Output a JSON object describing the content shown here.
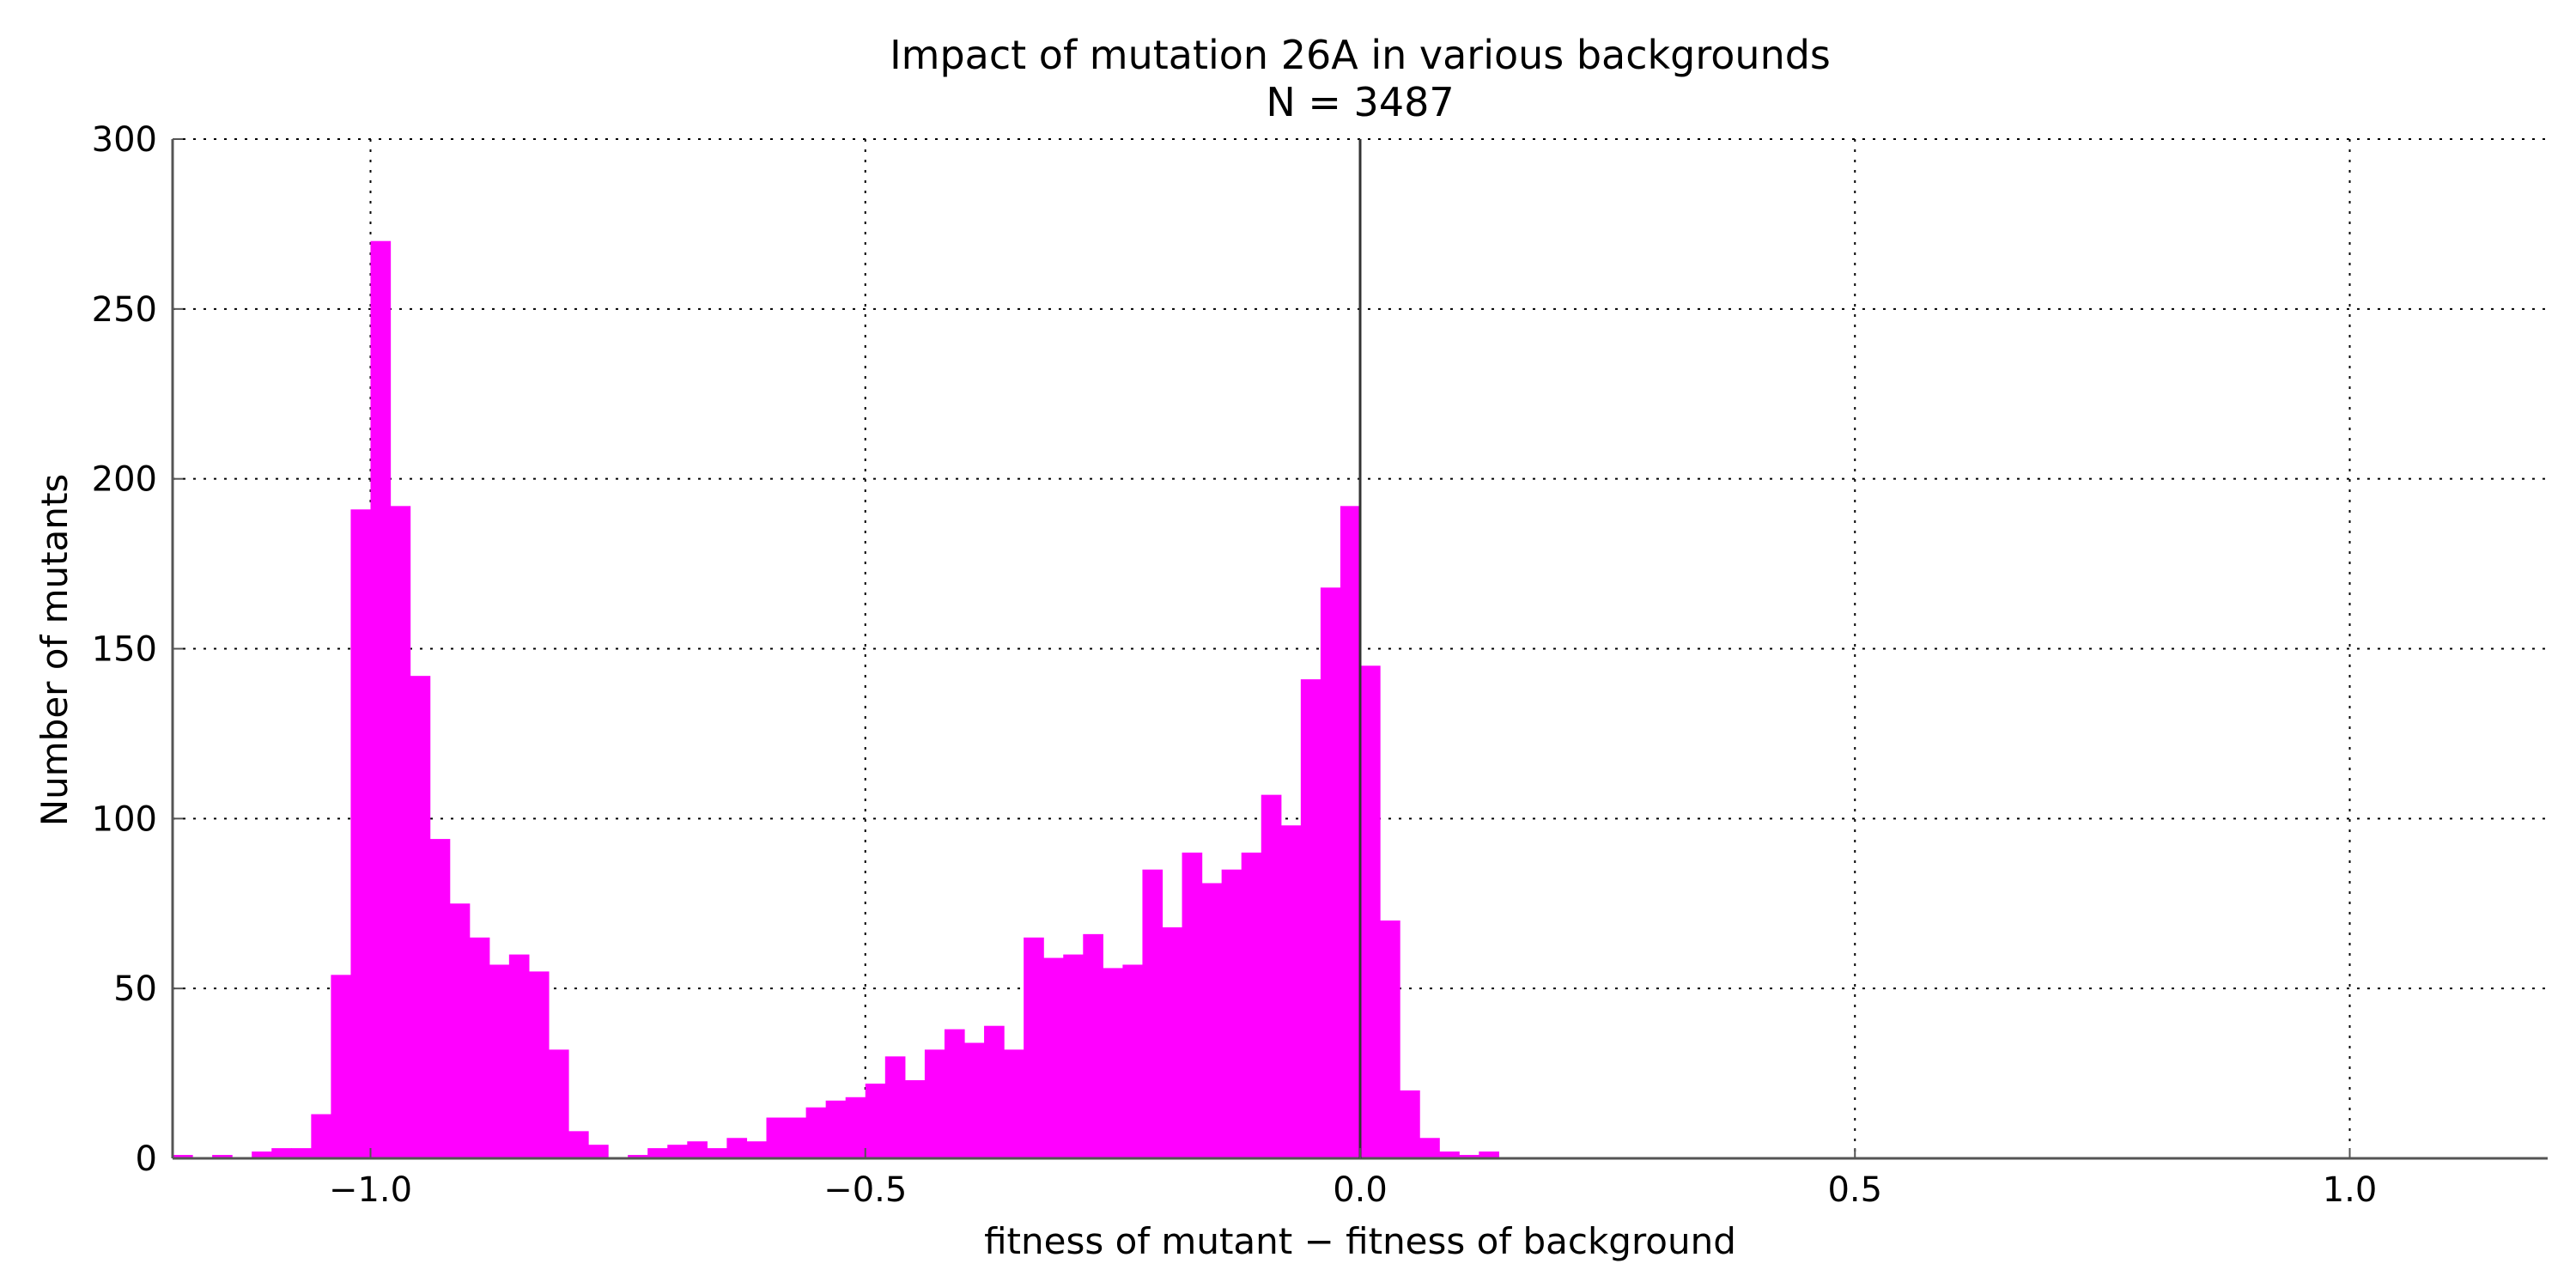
{
  "chart_data": {
    "type": "bar",
    "title": "Impact of mutation 26A in various backgrounds",
    "subtitle": "N = 3487",
    "xlabel": "fitness of mutant  −  fitness of background",
    "ylabel": "Number of mutants",
    "xlim": [
      -1.2,
      1.2
    ],
    "ylim": [
      0,
      300
    ],
    "x_ticks": [
      -1.0,
      -0.5,
      0.0,
      0.5,
      1.0
    ],
    "x_tick_labels": [
      "−1.0",
      "−0.5",
      "0.0",
      "0.5",
      "1.0"
    ],
    "y_ticks": [
      0,
      50,
      100,
      150,
      200,
      250,
      300
    ],
    "y_tick_labels": [
      "0",
      "50",
      "100",
      "150",
      "200",
      "250",
      "300"
    ],
    "grid": true,
    "bar_color": "#ff00ff",
    "reference_line_x": 0.0,
    "bin_width": 0.02,
    "bin_starts": [
      -1.2,
      -1.18,
      -1.16,
      -1.14,
      -1.12,
      -1.1,
      -1.08,
      -1.06,
      -1.04,
      -1.02,
      -1.0,
      -0.98,
      -0.96,
      -0.94,
      -0.92,
      -0.9,
      -0.88,
      -0.86,
      -0.84,
      -0.82,
      -0.8,
      -0.78,
      -0.76,
      -0.74,
      -0.72,
      -0.7,
      -0.68,
      -0.66,
      -0.64,
      -0.62,
      -0.6,
      -0.58,
      -0.56,
      -0.54,
      -0.52,
      -0.5,
      -0.48,
      -0.46,
      -0.44,
      -0.42,
      -0.4,
      -0.38,
      -0.36,
      -0.34,
      -0.32,
      -0.3,
      -0.28,
      -0.26,
      -0.24,
      -0.22,
      -0.2,
      -0.18,
      -0.16,
      -0.14,
      -0.12,
      -0.1,
      -0.08,
      -0.06,
      -0.04,
      -0.02,
      0.0,
      0.02,
      0.04,
      0.06,
      0.08,
      0.1,
      0.12
    ],
    "values": [
      1,
      0,
      1,
      0,
      2,
      3,
      3,
      13,
      54,
      191,
      270,
      192,
      142,
      94,
      75,
      65,
      57,
      60,
      55,
      32,
      8,
      4,
      0,
      1,
      3,
      4,
      5,
      3,
      6,
      5,
      12,
      12,
      15,
      17,
      18,
      22,
      30,
      23,
      32,
      38,
      34,
      39,
      32,
      65,
      59,
      60,
      66,
      56,
      57,
      85,
      68,
      90,
      81,
      85,
      90,
      107,
      98,
      141,
      168,
      192,
      145,
      70,
      20,
      6,
      2,
      1,
      2
    ]
  }
}
